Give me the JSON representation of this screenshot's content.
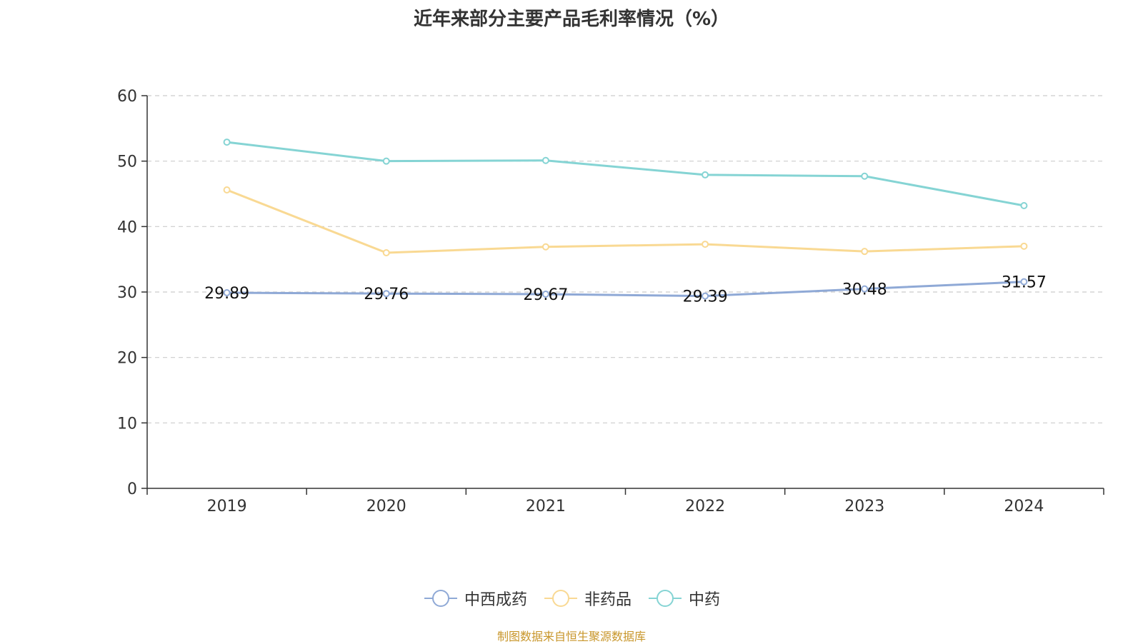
{
  "chart_data": {
    "type": "line",
    "title": "近年来部分主要产品毛利率情况（%）",
    "xlabel": "",
    "ylabel": "",
    "categories": [
      "2019",
      "2020",
      "2021",
      "2022",
      "2023",
      "2024"
    ],
    "ylim": [
      0,
      60
    ],
    "yticks": [
      "0",
      "10",
      "20",
      "30",
      "40",
      "50",
      "60"
    ],
    "grid": true,
    "legend_position": "bottom-center",
    "series": [
      {
        "name": "中西成药",
        "color": "#8fa9d6",
        "values": [
          29.89,
          29.76,
          29.67,
          29.39,
          30.48,
          31.57
        ],
        "labels": [
          "29.89",
          "29.76",
          "29.67",
          "29.39",
          "30.48",
          "31.57"
        ],
        "show_labels": true
      },
      {
        "name": "非药品",
        "color": "#f9d993",
        "values": [
          45.6,
          36.0,
          36.9,
          37.3,
          36.2,
          37.0
        ],
        "show_labels": false
      },
      {
        "name": "中药",
        "color": "#85d4d4",
        "values": [
          52.9,
          50.0,
          50.1,
          47.9,
          47.7,
          43.2
        ],
        "show_labels": false
      }
    ],
    "source": "制图数据来自恒生聚源数据库"
  }
}
